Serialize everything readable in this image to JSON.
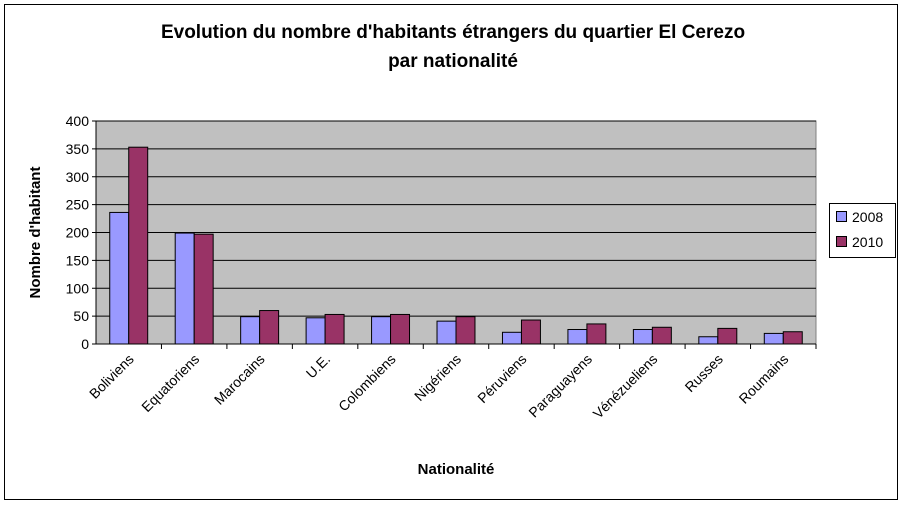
{
  "chart_data": {
    "type": "bar",
    "title_line1": "Evolution du nombre d'habitants étrangers du quartier El Cerezo",
    "title_line2": "par nationalité",
    "xlabel": "Nationalité",
    "ylabel": "Nombre d'habitant",
    "ylim": [
      0,
      400
    ],
    "yticks": [
      0,
      50,
      100,
      150,
      200,
      250,
      300,
      350,
      400
    ],
    "grid": true,
    "legend_position": "right",
    "categories": [
      "Boliviens",
      "Equatoriens",
      "Marocains",
      "U.E.",
      "Colombiens",
      "Nigériens",
      "Péruviens",
      "Paraguayens",
      "Vénézueliens",
      "Russes",
      "Roumains"
    ],
    "series": [
      {
        "name": "2008",
        "color": "#9999FF",
        "values": [
          236,
          199,
          49,
          47,
          49,
          41,
          21,
          26,
          26,
          13,
          19
        ]
      },
      {
        "name": "2010",
        "color": "#993366",
        "values": [
          353,
          197,
          60,
          53,
          53,
          49,
          43,
          36,
          30,
          28,
          22
        ]
      }
    ]
  }
}
